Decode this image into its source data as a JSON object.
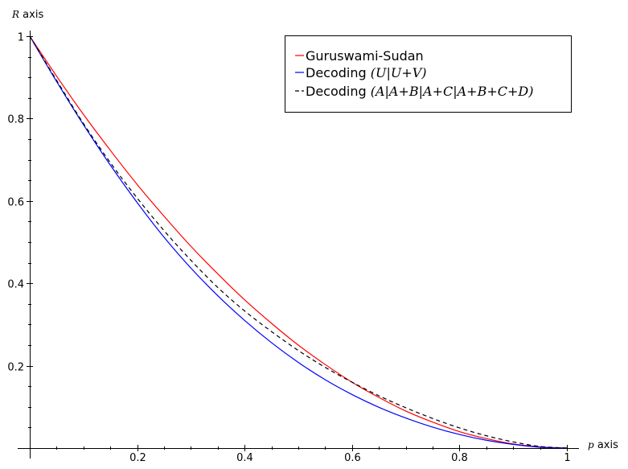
{
  "chart_data": {
    "type": "line",
    "xlabel_symbol": "p",
    "xlabel_text": " axis",
    "ylabel_symbol": "R",
    "ylabel_text": " axis",
    "xlim": [
      0,
      1
    ],
    "ylim": [
      0,
      1
    ],
    "x_ticks": [
      0.2,
      0.4,
      0.6,
      0.8,
      1
    ],
    "x_tick_labels": [
      "0.2",
      "0.4",
      "0.6",
      "0.8",
      "1"
    ],
    "y_ticks": [
      0.2,
      0.4,
      0.6,
      0.8,
      1
    ],
    "y_tick_labels": [
      "0.2",
      "0.4",
      "0.6",
      "0.8",
      "1"
    ],
    "grid": false,
    "legend_position": "top-right",
    "x": [
      0,
      0.05,
      0.1,
      0.15,
      0.2,
      0.25,
      0.3,
      0.35,
      0.4,
      0.45,
      0.5,
      0.55,
      0.6,
      0.65,
      0.7,
      0.75,
      0.8,
      0.85,
      0.9,
      0.95,
      1
    ],
    "series": [
      {
        "name": "Guruswami-Sudan",
        "name_math": "",
        "color": "#ff0000",
        "style": "solid",
        "values": [
          1,
          0.903,
          0.81,
          0.723,
          0.64,
          0.563,
          0.49,
          0.423,
          0.36,
          0.303,
          0.25,
          0.203,
          0.16,
          0.123,
          0.09,
          0.063,
          0.04,
          0.023,
          0.01,
          0.003,
          0
        ]
      },
      {
        "name": "Decoding ",
        "name_math": "(U|U+V)",
        "color": "#0000ff",
        "style": "solid",
        "values": [
          1,
          0.89,
          0.785,
          0.687,
          0.596,
          0.512,
          0.437,
          0.37,
          0.31,
          0.256,
          0.208,
          0.166,
          0.13,
          0.099,
          0.073,
          0.051,
          0.033,
          0.019,
          0.009,
          0.002,
          0
        ]
      },
      {
        "name": "Decoding ",
        "name_math": "(A|A+B|A+C|A+B+C+D)",
        "color": "#000000",
        "style": "dashed",
        "values": [
          1,
          0.893,
          0.788,
          0.693,
          0.607,
          0.528,
          0.456,
          0.39,
          0.333,
          0.283,
          0.237,
          0.196,
          0.16,
          0.127,
          0.098,
          0.072,
          0.049,
          0.03,
          0.015,
          0.004,
          0
        ]
      }
    ]
  }
}
